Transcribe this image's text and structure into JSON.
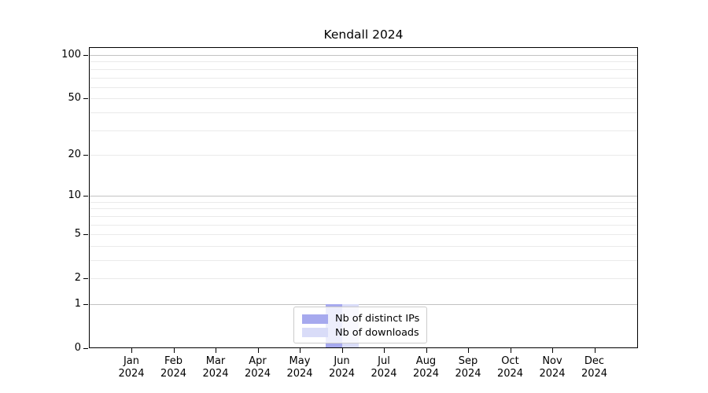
{
  "chart_data": {
    "type": "bar",
    "title": "Kendall 2024",
    "categories": [
      "Jan",
      "Feb",
      "Mar",
      "Apr",
      "May",
      "Jun",
      "Jul",
      "Aug",
      "Sep",
      "Oct",
      "Nov",
      "Dec"
    ],
    "category_year_label": "2024",
    "series": [
      {
        "name": "Nb of distinct IPs",
        "color": "#a6a9ee",
        "values": [
          0,
          0,
          0,
          0,
          0,
          1,
          0,
          0,
          0,
          0,
          0,
          0
        ]
      },
      {
        "name": "Nb of downloads",
        "color": "#d9dcf8",
        "values": [
          0,
          0,
          0,
          0,
          0,
          1,
          0,
          0,
          0,
          0,
          0,
          0
        ]
      }
    ],
    "y_axis": {
      "scale": "log1p",
      "tick_values": [
        0,
        1,
        2,
        5,
        10,
        20,
        50,
        100
      ],
      "tick_labels": [
        "0",
        "1",
        "2",
        "5",
        "10",
        "20",
        "50",
        "100"
      ],
      "major_gridline_values": [
        1,
        10,
        100
      ],
      "minor_gridline_values": [
        2,
        3,
        4,
        5,
        6,
        7,
        8,
        9,
        20,
        30,
        40,
        50,
        60,
        70,
        80,
        90
      ],
      "range_top_value": 100
    },
    "legend": {
      "position": "bottom-center",
      "entries": [
        "Nb of distinct IPs",
        "Nb of downloads"
      ]
    },
    "grid": true
  },
  "theme": {
    "bar_color_distinct_ips": "#a6a9ee",
    "bar_color_downloads": "#d9dcf8",
    "major_grid_color": "#c2c2c2",
    "minor_grid_color": "#eaeaea",
    "axis_color": "#000000",
    "text_color": "#000000",
    "legend_border_color": "#cccccc"
  }
}
